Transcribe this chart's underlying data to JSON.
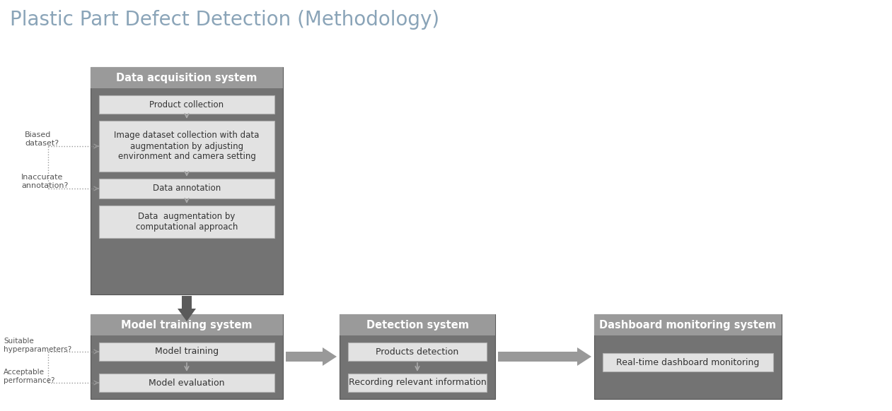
{
  "title": "Plastic Part Defect Detection (Methodology)",
  "title_color": "#8aa4b8",
  "title_fontsize": 20,
  "bg_color": "#ffffff",
  "outer_dark": "#737373",
  "header_gray": "#9a9a9a",
  "inner_box_fill": "#e2e2e2",
  "inner_box_edge": "#b0b0b0",
  "arrow_small": "#aaaaaa",
  "arrow_big_down": "#5a5a5a",
  "arrow_big_right": "#999999",
  "side_text_color": "#555555",
  "header_text_color": "#ffffff",
  "inner_text_color": "#333333",
  "acq_title": "Data acquisition system",
  "acq_boxes": [
    "Product collection",
    "Image dataset collection with data\naugmentation by adjusting\nenvironment and camera setting",
    "Data annotation",
    "Data  augmentation by\ncomputational approach"
  ],
  "train_title": "Model training system",
  "train_boxes": [
    "Model training",
    "Model evaluation"
  ],
  "detect_title": "Detection system",
  "detect_boxes": [
    "Products detection",
    "Recording relevant information"
  ],
  "dash_title": "Dashboard monitoring system",
  "dash_boxes": [
    "Real-time dashboard monitoring"
  ]
}
